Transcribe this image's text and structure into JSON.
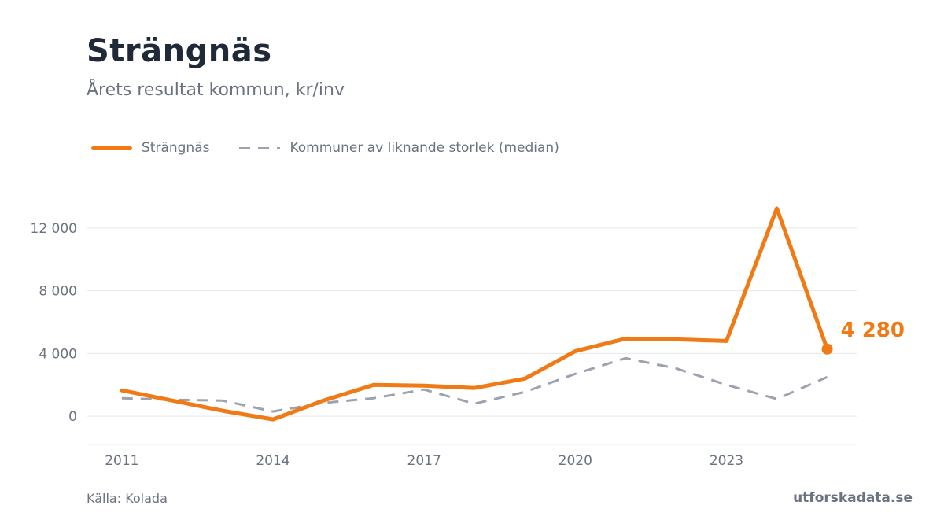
{
  "header": {
    "title": "Strängnäs",
    "subtitle": "Årets resultat kommun, kr/inv"
  },
  "legend": {
    "primary": "Strängnäs",
    "secondary": "Kommuner av liknande storlek (median)"
  },
  "footer": {
    "source": "Källa: Kolada",
    "brand": "utforskadata.se"
  },
  "colors": {
    "primary": "#f07a16",
    "secondary": "#9ca3af",
    "grid": "#e5e7eb",
    "axis_text": "#6b7280"
  },
  "chart_data": {
    "type": "line",
    "x": [
      2011,
      2012,
      2013,
      2014,
      2015,
      2016,
      2017,
      2018,
      2019,
      2020,
      2021,
      2022,
      2023,
      2024,
      2025
    ],
    "series": [
      {
        "name": "Strängnäs",
        "style": "solid",
        "values": [
          1650,
          1000,
          350,
          -200,
          1000,
          2000,
          1950,
          1800,
          2400,
          4150,
          4950,
          4900,
          4800,
          13250,
          4280
        ]
      },
      {
        "name": "Kommuner av liknande storlek (median)",
        "style": "dashed",
        "values": [
          1150,
          1050,
          1000,
          300,
          850,
          1150,
          1700,
          800,
          1550,
          2700,
          3700,
          3050,
          2000,
          1100,
          2500
        ]
      }
    ],
    "end_label": "4 280",
    "xticks": [
      2011,
      2014,
      2017,
      2020,
      2023
    ],
    "xtick_labels": [
      "2011",
      "2014",
      "2017",
      "2020",
      "2023"
    ],
    "yticks": [
      0,
      4000,
      8000,
      12000
    ],
    "ytick_labels": [
      "0",
      "4 000",
      "8 000",
      "12 000"
    ],
    "xlim": [
      2010.3,
      2025.6
    ],
    "ylim": [
      -1800,
      14500
    ],
    "grid": "horizontal",
    "legend_position": "top-left"
  }
}
